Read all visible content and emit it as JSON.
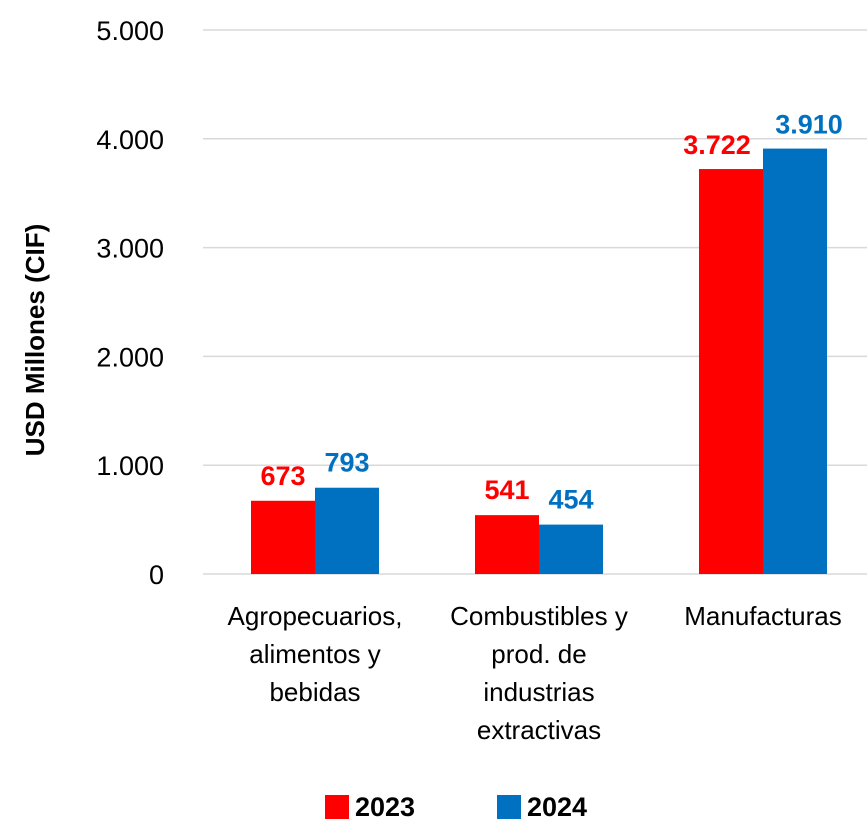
{
  "chart_data": {
    "type": "bar",
    "title": "",
    "xlabel": "",
    "ylabel": "USD Millones (CIF)",
    "categories": [
      [
        "Agropecuarios,",
        "alimentos y",
        "bebidas"
      ],
      [
        "Combustibles y",
        "prod. de",
        "industrias",
        "extractivas"
      ],
      [
        "Manufacturas"
      ]
    ],
    "series": [
      {
        "name": "2023",
        "color": "#FF0000",
        "values": [
          673,
          541,
          3722
        ],
        "labels": [
          "673",
          "541",
          "3.722"
        ]
      },
      {
        "name": "2024",
        "color": "#0070C0",
        "values": [
          793,
          454,
          3910
        ],
        "labels": [
          "793",
          "454",
          "3.910"
        ]
      }
    ],
    "ylim": [
      0,
      5000
    ],
    "yticks": [
      0,
      1000,
      2000,
      3000,
      4000,
      5000
    ],
    "ytick_labels": [
      "0",
      "1.000",
      "2.000",
      "3.000",
      "4.000",
      "5.000"
    ],
    "grid": true,
    "gridline_color": "#D9D9D9",
    "legend_position": "bottom"
  }
}
